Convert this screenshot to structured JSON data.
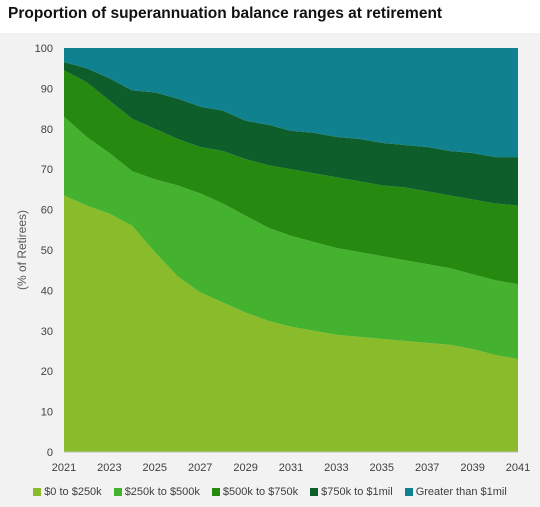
{
  "title": "Proportion of superannuation balance ranges at retirement",
  "chart_data": {
    "type": "area",
    "stacked": true,
    "title": "Proportion of superannuation balance ranges at retirement",
    "xlabel": "",
    "ylabel": "(% of Retirees)",
    "xlim": [
      2021,
      2041
    ],
    "ylim": [
      0,
      100
    ],
    "x_ticks": [
      2021,
      2023,
      2025,
      2027,
      2029,
      2031,
      2033,
      2035,
      2037,
      2039,
      2041
    ],
    "y_ticks": [
      0,
      10,
      20,
      30,
      40,
      50,
      60,
      70,
      80,
      90,
      100
    ],
    "grid": false,
    "legend_position": "bottom",
    "x": [
      2021,
      2022,
      2023,
      2024,
      2025,
      2026,
      2027,
      2028,
      2029,
      2030,
      2031,
      2032,
      2033,
      2034,
      2035,
      2036,
      2037,
      2038,
      2039,
      2040,
      2041
    ],
    "series": [
      {
        "name": "$0 to $250k",
        "color": "#8abb2a",
        "values": [
          63.5,
          61,
          59,
          56,
          49.5,
          43.5,
          39.5,
          37,
          34.5,
          32.5,
          31,
          30,
          29,
          28.5,
          28,
          27.5,
          27,
          26.5,
          25.5,
          24,
          23
        ]
      },
      {
        "name": "$250k to $500k",
        "color": "#44b22f",
        "values": [
          19.5,
          17,
          15,
          13.5,
          18,
          22.5,
          24.5,
          24.5,
          24,
          23,
          22.5,
          22,
          21.5,
          21,
          20.5,
          20,
          19.5,
          19,
          18.5,
          18.5,
          18.5
        ]
      },
      {
        "name": "$500k to $750k",
        "color": "#268a10",
        "values": [
          11.5,
          13.5,
          13,
          13,
          12.5,
          11.5,
          11.5,
          13,
          14,
          15.5,
          16.5,
          17,
          17.5,
          17.5,
          17.5,
          18,
          18,
          18,
          18.5,
          19,
          19.5
        ]
      },
      {
        "name": "$750k to $1mil",
        "color": "#0d5e2a",
        "values": [
          2,
          3.5,
          5.5,
          7,
          9,
          10,
          10,
          10,
          9.5,
          10,
          9.5,
          10,
          10,
          10.5,
          10.5,
          10.5,
          11,
          11,
          11.5,
          11.5,
          12
        ]
      },
      {
        "name": "Greater than $1mil",
        "color": "#10818f",
        "values": [
          3.5,
          5,
          7.5,
          10.5,
          11,
          12.5,
          14.5,
          15.5,
          18,
          19,
          20.5,
          21,
          22,
          22.5,
          23.5,
          24,
          24.5,
          25.5,
          26,
          27,
          27
        ]
      }
    ]
  }
}
